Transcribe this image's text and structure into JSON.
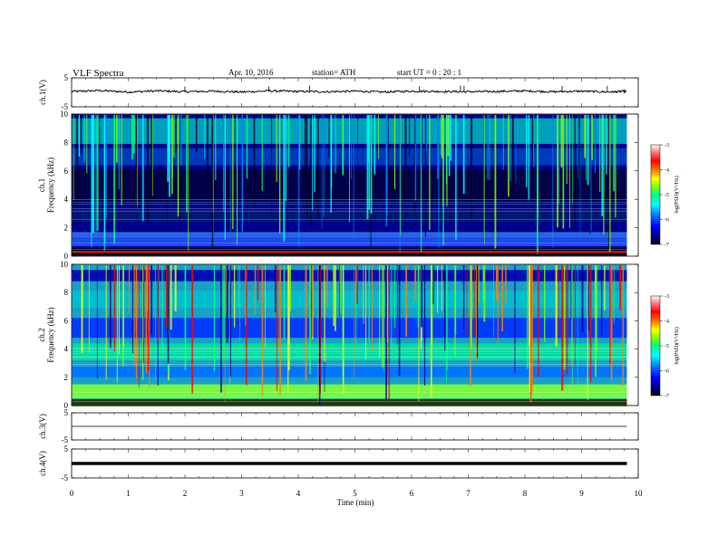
{
  "header": {
    "title": "VLF  Spectra",
    "date": "Apr. 10, 2016",
    "station": "station= ATH",
    "start": "start  UT  =    0  : 20 : 1"
  },
  "colors": {
    "trace": "#000000",
    "colormap": [
      "#000000",
      "#00008b",
      "#0000ff",
      "#0080ff",
      "#00ffff",
      "#00ff80",
      "#80ff00",
      "#ffff00",
      "#ff8000",
      "#ff0000",
      "#ff8080",
      "#ffffff"
    ]
  },
  "chart_data": [
    {
      "type": "line",
      "id": "ch1",
      "ylabel": "ch.1(V)",
      "ylim": [
        -5,
        5
      ],
      "yticks": [
        "5",
        "-5"
      ],
      "x": [
        0,
        0.5,
        1,
        1.5,
        2,
        2.5,
        3,
        3.5,
        4,
        4.5,
        5,
        5.5,
        6,
        6.5,
        7,
        7.5,
        8,
        8.5,
        9,
        9.5,
        9.8
      ],
      "values": [
        0.3,
        0.6,
        0.1,
        0.5,
        0.2,
        0.4,
        0.1,
        0.5,
        0.3,
        0.2,
        0.4,
        0.1,
        0.4,
        0.3,
        0.2,
        0.3,
        0.5,
        0.2,
        0.4,
        0.1,
        0.4
      ]
    },
    {
      "type": "heatmap",
      "id": "ch1-spectrogram",
      "ylabel": "ch.1\nFrequency  (kHz)",
      "ylim": [
        0,
        10
      ],
      "yticks": [
        "0",
        "2",
        "4",
        "6",
        "8",
        "10"
      ],
      "colorbar": {
        "title": "log(PSD)(V²/Hz)",
        "ticks": [
          "-3",
          "-4",
          "-5",
          "-6",
          "-7"
        ],
        "range": [
          -7,
          -3
        ]
      }
    },
    {
      "type": "heatmap",
      "id": "ch2-spectrogram",
      "ylabel": "ch.2\nFrequency  (kHz)",
      "ylim": [
        0,
        10
      ],
      "yticks": [
        "0",
        "2",
        "4",
        "6",
        "8",
        "10"
      ],
      "colorbar": {
        "title": "log(PSD)(V²/Hz)",
        "ticks": [
          "-3",
          "-4",
          "-5",
          "-6",
          "-7"
        ],
        "range": [
          -7,
          -3
        ]
      }
    },
    {
      "type": "line",
      "id": "ch3",
      "ylabel": "ch.3(V)",
      "ylim": [
        -5,
        5
      ],
      "yticks": [
        "5",
        "-5"
      ],
      "x": [
        0,
        9.8
      ],
      "values": [
        0,
        0
      ]
    },
    {
      "type": "line",
      "id": "ch4",
      "ylabel": "ch.4(V)",
      "ylim": [
        -5,
        5
      ],
      "yticks": [
        "5",
        "-5"
      ],
      "x": [
        0,
        9.8
      ],
      "values": [
        0,
        0
      ]
    }
  ],
  "xaxis": {
    "label": "Time  (min)",
    "xlim": [
      0,
      10
    ],
    "ticks": [
      "0",
      "1",
      "2",
      "3",
      "4",
      "5",
      "6",
      "7",
      "8",
      "9",
      "10"
    ]
  }
}
